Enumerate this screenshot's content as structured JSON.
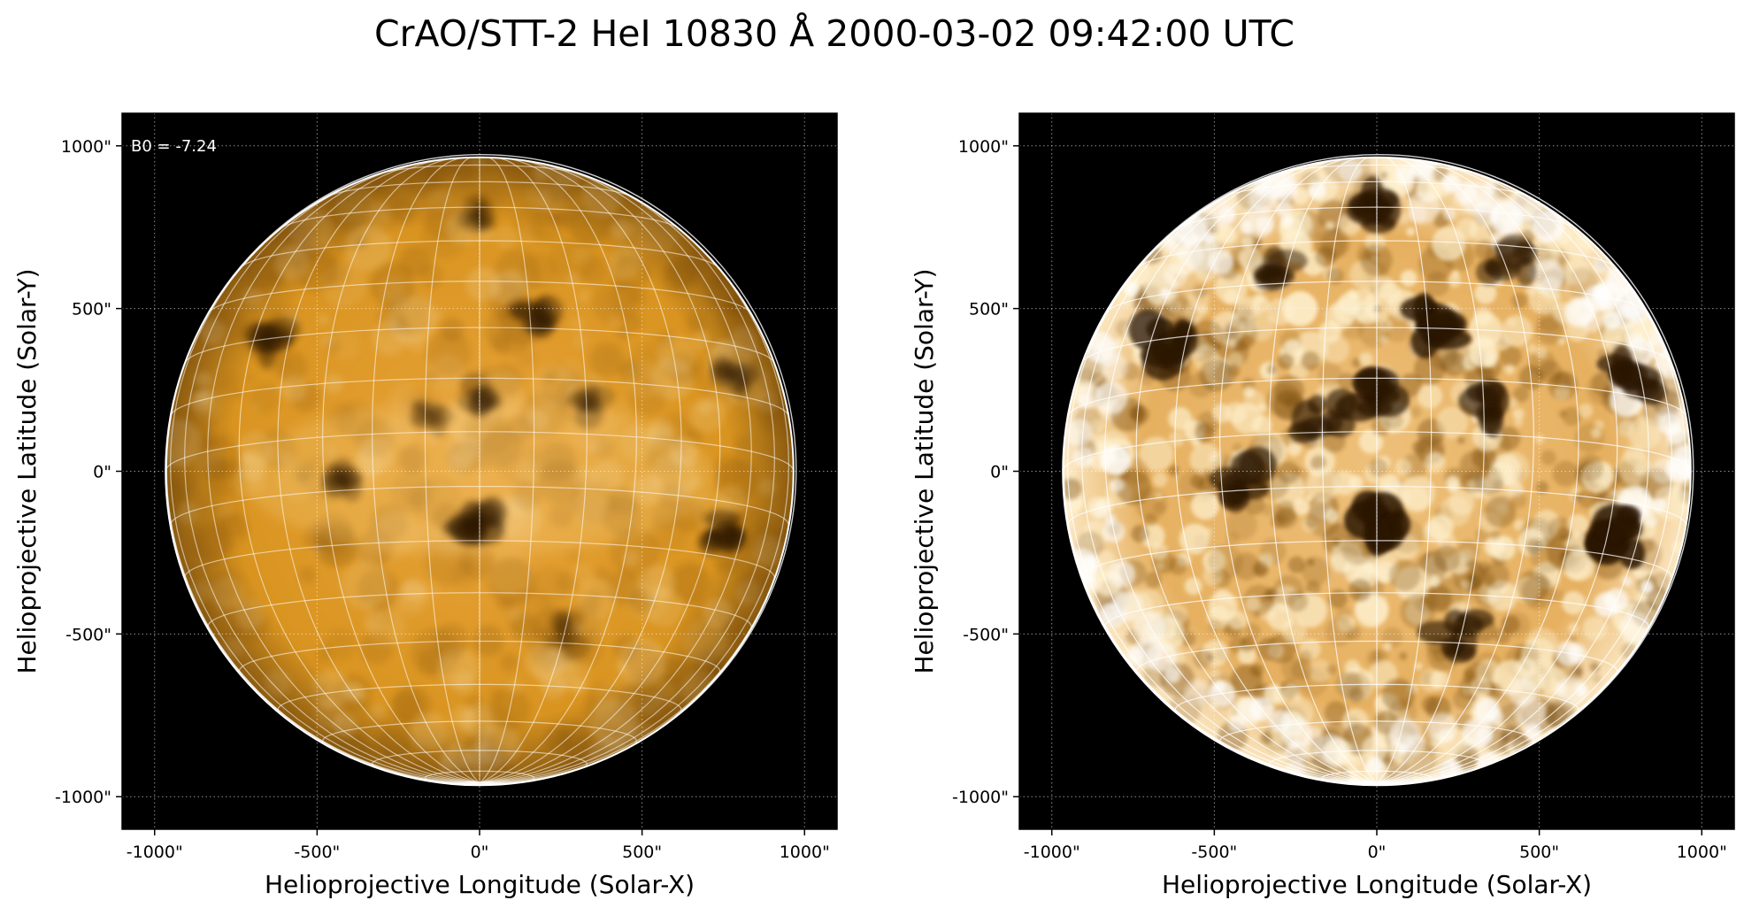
{
  "title": "CrAO/STT-2 HeI 10830 Å 2000-03-02 09:42:00 UTC",
  "colors": {
    "background": "#000000",
    "disk_light": "#f2b54a",
    "disk_mid": "#c98410",
    "disk_dark": "#2a1500",
    "grid": "#ffffff",
    "limb": "#ffffff"
  },
  "chart_data": [
    {
      "type": "heatmap",
      "panel": "left",
      "description_style": "linear scaling",
      "xlabel": "Helioprojective Longitude (Solar-X)",
      "ylabel": "Helioprojective Latitude (Solar-Y)",
      "xlim": [
        -1100,
        1100
      ],
      "ylim": [
        -1100,
        1100
      ],
      "xticks": [
        -1000,
        -500,
        0,
        500,
        1000
      ],
      "yticks": [
        -1000,
        -500,
        0,
        500,
        1000
      ],
      "xtick_labels": [
        "-1000\"",
        "-500\"",
        "0\"",
        "500\"",
        "1000\""
      ],
      "ytick_labels": [
        "-1000\"",
        "-500\"",
        "0\"",
        "500\"",
        "1000\""
      ],
      "grid": true,
      "annotation": "B0 = -7.24",
      "solar_radius_arcsec": 966,
      "b0_deg": -7.24,
      "dark_features": [
        {
          "x": -5,
          "y": -140,
          "intensity": 0.95
        },
        {
          "x": 730,
          "y": -190,
          "intensity": 0.85
        },
        {
          "x": -640,
          "y": 390,
          "intensity": 0.7
        },
        {
          "x": 160,
          "y": 450,
          "intensity": 0.75
        },
        {
          "x": 0,
          "y": 240,
          "intensity": 0.55
        },
        {
          "x": 780,
          "y": 300,
          "intensity": 0.6
        },
        {
          "x": -430,
          "y": -40,
          "intensity": 0.55
        },
        {
          "x": 250,
          "y": -500,
          "intensity": 0.45
        },
        {
          "x": 0,
          "y": 800,
          "intensity": 0.5
        },
        {
          "x": -170,
          "y": 170,
          "intensity": 0.45
        },
        {
          "x": 330,
          "y": 200,
          "intensity": 0.45
        }
      ]
    },
    {
      "type": "heatmap",
      "panel": "right",
      "description_style": "contrast-enhanced scaling",
      "xlabel": "Helioprojective Longitude (Solar-X)",
      "ylabel": "Helioprojective Latitude (Solar-Y)",
      "xlim": [
        -1100,
        1100
      ],
      "ylim": [
        -1100,
        1100
      ],
      "xticks": [
        -1000,
        -500,
        0,
        500,
        1000
      ],
      "yticks": [
        -1000,
        -500,
        0,
        500,
        1000
      ],
      "xtick_labels": [
        "-1000\"",
        "-500\"",
        "0\"",
        "500\"",
        "1000\""
      ],
      "ytick_labels": [
        "-1000\"",
        "-500\"",
        "0\"",
        "500\"",
        "1000\""
      ],
      "grid": true,
      "solar_radius_arcsec": 966,
      "b0_deg": -7.24,
      "dark_features": [
        {
          "x": -5,
          "y": -140,
          "intensity": 1.0
        },
        {
          "x": 730,
          "y": -190,
          "intensity": 1.0
        },
        {
          "x": -640,
          "y": 390,
          "intensity": 0.9
        },
        {
          "x": 150,
          "y": 450,
          "intensity": 0.95
        },
        {
          "x": 0,
          "y": 240,
          "intensity": 0.85
        },
        {
          "x": 780,
          "y": 300,
          "intensity": 0.85
        },
        {
          "x": -430,
          "y": -40,
          "intensity": 0.8
        },
        {
          "x": 250,
          "y": -500,
          "intensity": 0.75
        },
        {
          "x": 0,
          "y": 800,
          "intensity": 0.8
        },
        {
          "x": -170,
          "y": 170,
          "intensity": 0.75
        },
        {
          "x": 330,
          "y": 200,
          "intensity": 0.75
        },
        {
          "x": -300,
          "y": 600,
          "intensity": 0.6
        },
        {
          "x": 400,
          "y": 650,
          "intensity": 0.6
        }
      ]
    }
  ]
}
